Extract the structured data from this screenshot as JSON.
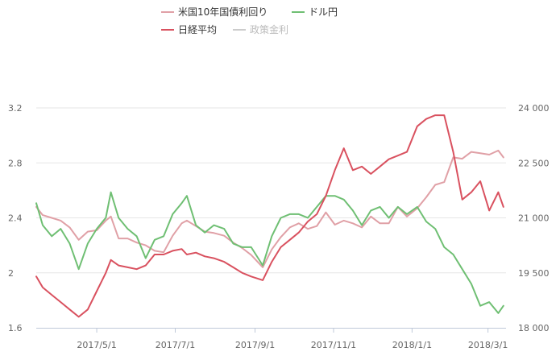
{
  "chart_data": {
    "type": "line",
    "title": "",
    "legend": {
      "placement": "top",
      "items": [
        {
          "name": "米国10年国債利回り",
          "color": "#e0a0a6",
          "visible": true
        },
        {
          "name": "ドル円",
          "color": "#6fbf73",
          "visible": true
        },
        {
          "name": "日経平均",
          "color": "#d9515f",
          "visible": true
        },
        {
          "name": "政策金利",
          "color": "#cccccc",
          "visible": false
        }
      ]
    },
    "x_axis": {
      "type": "date",
      "range": [
        "2017-03-15",
        "2018-03-15"
      ],
      "ticks": [
        {
          "date": "2017-05-01",
          "label": "2017/5/1"
        },
        {
          "date": "2017-07-01",
          "label": "2017/7/1"
        },
        {
          "date": "2017-09-01",
          "label": "2017/9/1"
        },
        {
          "date": "2017-11-01",
          "label": "2017/11/1"
        },
        {
          "date": "2018-01-01",
          "label": "2018/1/1"
        },
        {
          "date": "2018-03-01",
          "label": "2018/3/1"
        }
      ]
    },
    "y_left": {
      "range": [
        1.6,
        3.2
      ],
      "ticks": [
        {
          "value": 1.6,
          "label": "1.6"
        },
        {
          "value": 2.0,
          "label": "2"
        },
        {
          "value": 2.4,
          "label": "2.4"
        },
        {
          "value": 2.8,
          "label": "2.8"
        },
        {
          "value": 3.2,
          "label": "3.2"
        }
      ]
    },
    "y_right": {
      "range": [
        18000,
        24000
      ],
      "ticks": [
        {
          "value": 18000,
          "label": "18 000"
        },
        {
          "value": 19500,
          "label": "19 500"
        },
        {
          "value": 21000,
          "label": "21 000"
        },
        {
          "value": 22500,
          "label": "22 500"
        },
        {
          "value": 24000,
          "label": "24 000"
        }
      ]
    },
    "grid": true,
    "series": [
      {
        "name": "米国10年国債利回り",
        "axis": "left",
        "color": "#e0a0a6",
        "points": [
          [
            "2017-03-15",
            2.48
          ],
          [
            "2017-03-20",
            2.42
          ],
          [
            "2017-03-27",
            2.4
          ],
          [
            "2017-04-03",
            2.38
          ],
          [
            "2017-04-10",
            2.33
          ],
          [
            "2017-04-17",
            2.24
          ],
          [
            "2017-04-24",
            2.3
          ],
          [
            "2017-05-01",
            2.31
          ],
          [
            "2017-05-08",
            2.38
          ],
          [
            "2017-05-12",
            2.41
          ],
          [
            "2017-05-18",
            2.25
          ],
          [
            "2017-05-25",
            2.25
          ],
          [
            "2017-06-01",
            2.22
          ],
          [
            "2017-06-08",
            2.2
          ],
          [
            "2017-06-15",
            2.16
          ],
          [
            "2017-06-22",
            2.15
          ],
          [
            "2017-06-29",
            2.27
          ],
          [
            "2017-07-06",
            2.36
          ],
          [
            "2017-07-10",
            2.38
          ],
          [
            "2017-07-17",
            2.34
          ],
          [
            "2017-07-24",
            2.3
          ],
          [
            "2017-07-31",
            2.29
          ],
          [
            "2017-08-08",
            2.27
          ],
          [
            "2017-08-15",
            2.22
          ],
          [
            "2017-08-22",
            2.18
          ],
          [
            "2017-08-29",
            2.13
          ],
          [
            "2017-09-07",
            2.04
          ],
          [
            "2017-09-14",
            2.17
          ],
          [
            "2017-09-21",
            2.26
          ],
          [
            "2017-09-28",
            2.33
          ],
          [
            "2017-10-05",
            2.36
          ],
          [
            "2017-10-12",
            2.32
          ],
          [
            "2017-10-19",
            2.34
          ],
          [
            "2017-10-26",
            2.44
          ],
          [
            "2017-11-02",
            2.35
          ],
          [
            "2017-11-09",
            2.38
          ],
          [
            "2017-11-16",
            2.36
          ],
          [
            "2017-11-23",
            2.33
          ],
          [
            "2017-11-30",
            2.41
          ],
          [
            "2017-12-07",
            2.36
          ],
          [
            "2017-12-14",
            2.36
          ],
          [
            "2017-12-21",
            2.48
          ],
          [
            "2017-12-28",
            2.41
          ],
          [
            "2018-01-05",
            2.47
          ],
          [
            "2018-01-12",
            2.55
          ],
          [
            "2018-01-19",
            2.64
          ],
          [
            "2018-01-26",
            2.66
          ],
          [
            "2018-02-02",
            2.84
          ],
          [
            "2018-02-09",
            2.83
          ],
          [
            "2018-02-16",
            2.88
          ],
          [
            "2018-02-23",
            2.87
          ],
          [
            "2018-03-02",
            2.86
          ],
          [
            "2018-03-09",
            2.89
          ],
          [
            "2018-03-13",
            2.84
          ]
        ]
      },
      {
        "name": "ドル円",
        "axis": "right",
        "color": "#6fbf73",
        "points": [
          [
            "2017-03-15",
            21400
          ],
          [
            "2017-03-20",
            20800
          ],
          [
            "2017-03-27",
            20500
          ],
          [
            "2017-04-03",
            20700
          ],
          [
            "2017-04-10",
            20300
          ],
          [
            "2017-04-17",
            19600
          ],
          [
            "2017-04-24",
            20300
          ],
          [
            "2017-05-01",
            20700
          ],
          [
            "2017-05-08",
            21000
          ],
          [
            "2017-05-12",
            21700
          ],
          [
            "2017-05-18",
            21000
          ],
          [
            "2017-05-25",
            20700
          ],
          [
            "2017-06-01",
            20500
          ],
          [
            "2017-06-08",
            19900
          ],
          [
            "2017-06-15",
            20400
          ],
          [
            "2017-06-22",
            20500
          ],
          [
            "2017-06-29",
            21100
          ],
          [
            "2017-07-06",
            21400
          ],
          [
            "2017-07-10",
            21600
          ],
          [
            "2017-07-17",
            20800
          ],
          [
            "2017-07-24",
            20600
          ],
          [
            "2017-07-31",
            20800
          ],
          [
            "2017-08-08",
            20700
          ],
          [
            "2017-08-15",
            20300
          ],
          [
            "2017-08-22",
            20200
          ],
          [
            "2017-08-29",
            20200
          ],
          [
            "2017-09-07",
            19700
          ],
          [
            "2017-09-14",
            20500
          ],
          [
            "2017-09-21",
            21000
          ],
          [
            "2017-09-28",
            21100
          ],
          [
            "2017-10-05",
            21100
          ],
          [
            "2017-10-12",
            21000
          ],
          [
            "2017-10-19",
            21300
          ],
          [
            "2017-10-26",
            21600
          ],
          [
            "2017-11-02",
            21600
          ],
          [
            "2017-11-09",
            21500
          ],
          [
            "2017-11-16",
            21200
          ],
          [
            "2017-11-23",
            20800
          ],
          [
            "2017-11-30",
            21200
          ],
          [
            "2017-12-07",
            21300
          ],
          [
            "2017-12-14",
            21000
          ],
          [
            "2017-12-21",
            21300
          ],
          [
            "2017-12-28",
            21100
          ],
          [
            "2018-01-05",
            21300
          ],
          [
            "2018-01-12",
            20900
          ],
          [
            "2018-01-19",
            20700
          ],
          [
            "2018-01-26",
            20200
          ],
          [
            "2018-02-02",
            20000
          ],
          [
            "2018-02-09",
            19600
          ],
          [
            "2018-02-16",
            19200
          ],
          [
            "2018-02-23",
            18600
          ],
          [
            "2018-03-02",
            18700
          ],
          [
            "2018-03-09",
            18400
          ],
          [
            "2018-03-13",
            18600
          ]
        ]
      },
      {
        "name": "日経平均",
        "axis": "right",
        "color": "#d9515f",
        "points": [
          [
            "2017-03-15",
            19400
          ],
          [
            "2017-03-20",
            19100
          ],
          [
            "2017-03-27",
            18900
          ],
          [
            "2017-04-03",
            18700
          ],
          [
            "2017-04-10",
            18500
          ],
          [
            "2017-04-17",
            18300
          ],
          [
            "2017-04-24",
            18500
          ],
          [
            "2017-05-01",
            19000
          ],
          [
            "2017-05-08",
            19500
          ],
          [
            "2017-05-12",
            19850
          ],
          [
            "2017-05-18",
            19700
          ],
          [
            "2017-05-25",
            19650
          ],
          [
            "2017-06-01",
            19600
          ],
          [
            "2017-06-08",
            19700
          ],
          [
            "2017-06-15",
            20000
          ],
          [
            "2017-06-22",
            20000
          ],
          [
            "2017-06-29",
            20100
          ],
          [
            "2017-07-06",
            20150
          ],
          [
            "2017-07-10",
            20000
          ],
          [
            "2017-07-17",
            20050
          ],
          [
            "2017-07-24",
            19950
          ],
          [
            "2017-07-31",
            19900
          ],
          [
            "2017-08-08",
            19800
          ],
          [
            "2017-08-15",
            19650
          ],
          [
            "2017-08-22",
            19500
          ],
          [
            "2017-08-29",
            19400
          ],
          [
            "2017-09-07",
            19300
          ],
          [
            "2017-09-14",
            19800
          ],
          [
            "2017-09-21",
            20200
          ],
          [
            "2017-09-28",
            20400
          ],
          [
            "2017-10-05",
            20600
          ],
          [
            "2017-10-12",
            20900
          ],
          [
            "2017-10-19",
            21100
          ],
          [
            "2017-10-26",
            21600
          ],
          [
            "2017-11-02",
            22300
          ],
          [
            "2017-11-09",
            22900
          ],
          [
            "2017-11-16",
            22300
          ],
          [
            "2017-11-23",
            22400
          ],
          [
            "2017-11-30",
            22200
          ],
          [
            "2017-12-07",
            22400
          ],
          [
            "2017-12-14",
            22600
          ],
          [
            "2017-12-21",
            22700
          ],
          [
            "2017-12-28",
            22800
          ],
          [
            "2018-01-05",
            23500
          ],
          [
            "2018-01-12",
            23700
          ],
          [
            "2018-01-19",
            23800
          ],
          [
            "2018-01-26",
            23800
          ],
          [
            "2018-02-02",
            22800
          ],
          [
            "2018-02-09",
            21500
          ],
          [
            "2018-02-16",
            21700
          ],
          [
            "2018-02-23",
            22000
          ],
          [
            "2018-03-02",
            21200
          ],
          [
            "2018-03-09",
            21700
          ],
          [
            "2018-03-13",
            21300
          ]
        ]
      }
    ]
  }
}
